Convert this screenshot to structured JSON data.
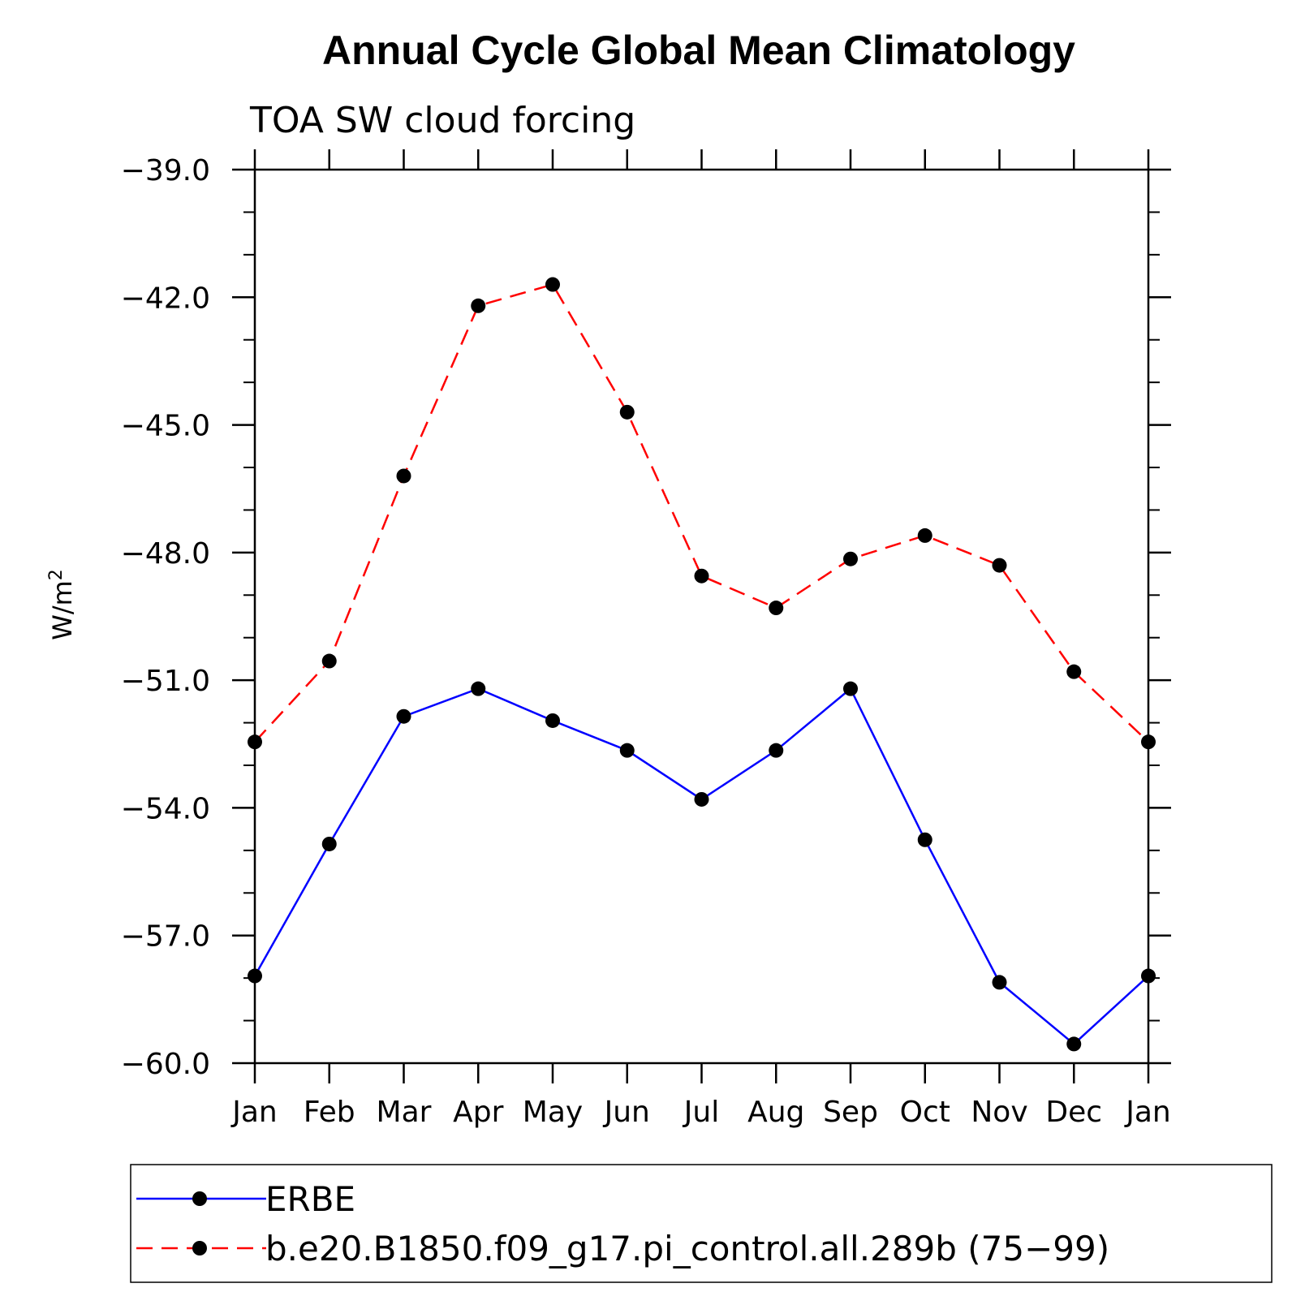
{
  "chart_data": {
    "type": "line",
    "title": "Annual Cycle Global Mean Climatology",
    "subtitle": "TOA SW cloud forcing",
    "ylabel": "W/m",
    "ylabel_sup": "2",
    "xlabel": "",
    "categories": [
      "Jan",
      "Feb",
      "Mar",
      "Apr",
      "May",
      "Jun",
      "Jul",
      "Aug",
      "Sep",
      "Oct",
      "Nov",
      "Dec",
      "Jan"
    ],
    "ylim": [
      -60.0,
      -39.0
    ],
    "yticks": [
      -39.0,
      -42.0,
      -45.0,
      -48.0,
      -51.0,
      -54.0,
      -57.0,
      -60.0
    ],
    "ytick_labels": [
      "−39.0",
      "−42.0",
      "−45.0",
      "−48.0",
      "−51.0",
      "−54.0",
      "−57.0",
      "−60.0"
    ],
    "grid": false,
    "legend": "bottom",
    "series": [
      {
        "name": "ERBE",
        "color": "#0000ff",
        "dash": "solid",
        "values": [
          -57.95,
          -54.85,
          -51.85,
          -51.2,
          -51.95,
          -52.65,
          -53.8,
          -52.65,
          -51.2,
          -54.75,
          -58.1,
          -59.55,
          -57.95
        ]
      },
      {
        "name": "b.e20.B1850.f09_g17.pi_control.all.289b (75−99)",
        "color": "#ff0000",
        "dash": "dashed",
        "values": [
          -52.45,
          -50.55,
          -46.2,
          -42.2,
          -41.7,
          -44.7,
          -48.55,
          -49.3,
          -48.15,
          -47.6,
          -48.3,
          -50.8,
          -52.45
        ]
      }
    ]
  }
}
